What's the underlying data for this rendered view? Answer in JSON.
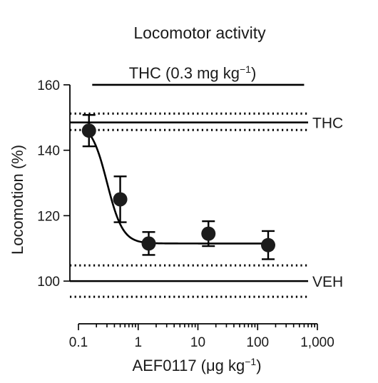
{
  "chart_data": {
    "type": "scatter",
    "title": "Locomotor activity",
    "xlabel": "AEF0117 (μg kg",
    "xlabel_superscript": "−1",
    "xlabel_close": ")",
    "ylabel": "Locomotion (%)",
    "x_scale": "log",
    "xlim": [
      0.1,
      1000
    ],
    "ylim": [
      90,
      165
    ],
    "x_ticks": [
      0.1,
      1,
      10,
      100,
      1000
    ],
    "x_tick_labels": [
      "0.1",
      "1",
      "10",
      "100",
      "1,000"
    ],
    "y_ticks": [
      100,
      120,
      140,
      160
    ],
    "y_tick_labels": [
      "100",
      "120",
      "140",
      "160"
    ],
    "treatment_bar": {
      "label": "THC (0.3 mg kg",
      "label_superscript": "−1",
      "label_close": ")",
      "x_start": 0.17,
      "x_end": 600,
      "y": 160
    },
    "reference_lines": [
      {
        "label": "THC",
        "y": 148.5,
        "upper": 151.2,
        "lower": 146.2
      },
      {
        "label": "VEH",
        "y": 100,
        "upper": 104.8,
        "lower": 95.2
      }
    ],
    "series": [
      {
        "x": [
          0.15,
          0.5,
          1.5,
          15,
          150
        ],
        "y": [
          146,
          125,
          111.5,
          114.5,
          111
        ],
        "error": [
          4.8,
          7,
          3.5,
          3.8,
          4.3
        ]
      }
    ],
    "fit_curve": {
      "type": "sigmoid",
      "top": 148.5,
      "bottom": 111.5,
      "log_ec50": -0.52,
      "hill_slope": 3.3
    },
    "grid": false,
    "legend": "none"
  }
}
